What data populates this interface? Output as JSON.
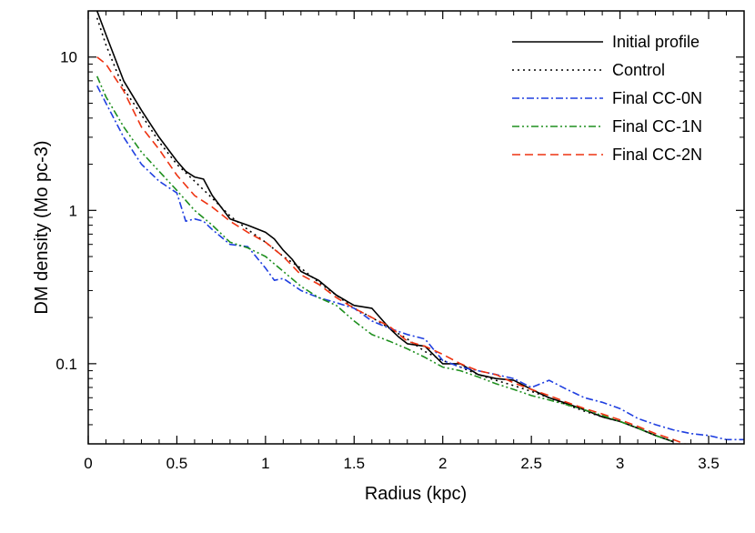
{
  "chart_data": {
    "type": "line",
    "xlabel": "Radius (kpc)",
    "ylabel": "DM density (Mo pc-3)",
    "xscale": "linear",
    "yscale": "log",
    "xlim": [
      0,
      3.7
    ],
    "ylim": [
      0.03,
      20
    ],
    "xticks": [
      0,
      0.5,
      1,
      1.5,
      2,
      2.5,
      3,
      3.5
    ],
    "xtick_labels": [
      "0",
      "0.5",
      "1",
      "1.5",
      "2",
      "2.5",
      "3",
      "3.5"
    ],
    "yticks": [
      0.1,
      1,
      10
    ],
    "ytick_labels": [
      "0.1",
      "1",
      "10"
    ],
    "legend_position": "top-right",
    "series": [
      {
        "name": "Initial profile",
        "color": "#000000",
        "style": "solid",
        "x": [
          0.05,
          0.1,
          0.2,
          0.3,
          0.4,
          0.5,
          0.55,
          0.6,
          0.65,
          0.7,
          0.8,
          0.9,
          1.0,
          1.05,
          1.1,
          1.15,
          1.2,
          1.3,
          1.4,
          1.5,
          1.6,
          1.7,
          1.75,
          1.8,
          1.9,
          2.0,
          2.1,
          2.2,
          2.3,
          2.4,
          2.5,
          2.6,
          2.7,
          2.8,
          2.9,
          3.0,
          3.1,
          3.2,
          3.3
        ],
        "values": [
          20,
          14,
          7.0,
          4.5,
          3.0,
          2.1,
          1.8,
          1.65,
          1.6,
          1.25,
          0.88,
          0.8,
          0.72,
          0.65,
          0.55,
          0.48,
          0.4,
          0.35,
          0.28,
          0.24,
          0.23,
          0.17,
          0.15,
          0.135,
          0.13,
          0.1,
          0.1,
          0.085,
          0.08,
          0.078,
          0.068,
          0.06,
          0.055,
          0.05,
          0.045,
          0.042,
          0.038,
          0.034,
          0.031
        ]
      },
      {
        "name": "Control",
        "color": "#000000",
        "style": "dotted",
        "x": [
          0.05,
          0.1,
          0.2,
          0.3,
          0.4,
          0.5,
          0.6,
          0.7,
          0.8,
          0.9,
          1.0,
          1.1,
          1.2,
          1.3,
          1.4,
          1.5,
          1.6,
          1.7,
          1.8,
          1.9,
          2.0,
          2.1,
          2.2,
          2.3,
          2.4,
          2.5,
          2.6,
          2.7,
          2.8,
          2.9,
          3.0,
          3.1,
          3.2,
          3.3
        ],
        "values": [
          18,
          12,
          6.2,
          4.2,
          2.8,
          2.0,
          1.55,
          1.2,
          0.92,
          0.75,
          0.62,
          0.5,
          0.42,
          0.34,
          0.28,
          0.23,
          0.2,
          0.17,
          0.145,
          0.12,
          0.105,
          0.095,
          0.085,
          0.078,
          0.072,
          0.066,
          0.06,
          0.054,
          0.049,
          0.045,
          0.042,
          0.038,
          0.034,
          0.031
        ]
      },
      {
        "name": "Final CC-0N",
        "color": "#1f3fe0",
        "style": "dashdot",
        "x": [
          0.05,
          0.1,
          0.2,
          0.3,
          0.4,
          0.5,
          0.55,
          0.6,
          0.65,
          0.7,
          0.8,
          0.9,
          1.0,
          1.05,
          1.1,
          1.2,
          1.3,
          1.4,
          1.5,
          1.6,
          1.7,
          1.8,
          1.9,
          2.0,
          2.1,
          2.2,
          2.3,
          2.4,
          2.5,
          2.6,
          2.7,
          2.8,
          2.9,
          3.0,
          3.1,
          3.2,
          3.3,
          3.4,
          3.5,
          3.6,
          3.7
        ],
        "values": [
          6.5,
          5.0,
          3.0,
          2.0,
          1.55,
          1.3,
          0.85,
          0.88,
          0.85,
          0.75,
          0.6,
          0.58,
          0.42,
          0.35,
          0.36,
          0.3,
          0.27,
          0.25,
          0.23,
          0.19,
          0.17,
          0.155,
          0.145,
          0.105,
          0.095,
          0.09,
          0.085,
          0.08,
          0.07,
          0.078,
          0.068,
          0.06,
          0.056,
          0.051,
          0.044,
          0.04,
          0.037,
          0.035,
          0.034,
          0.032,
          0.032
        ]
      },
      {
        "name": "Final CC-1N",
        "color": "#1e8f1e",
        "style": "dashdotdot",
        "x": [
          0.05,
          0.1,
          0.2,
          0.3,
          0.4,
          0.5,
          0.6,
          0.7,
          0.8,
          0.9,
          1.0,
          1.1,
          1.2,
          1.3,
          1.4,
          1.5,
          1.6,
          1.7,
          1.8,
          1.9,
          2.0,
          2.1,
          2.2,
          2.3,
          2.4,
          2.5,
          2.6,
          2.7,
          2.8,
          2.9,
          3.0,
          3.1,
          3.2,
          3.3
        ],
        "values": [
          7.5,
          5.5,
          3.5,
          2.4,
          1.8,
          1.35,
          1.0,
          0.8,
          0.62,
          0.57,
          0.5,
          0.4,
          0.32,
          0.27,
          0.24,
          0.19,
          0.155,
          0.14,
          0.125,
          0.11,
          0.095,
          0.09,
          0.082,
          0.074,
          0.068,
          0.062,
          0.058,
          0.054,
          0.05,
          0.046,
          0.042,
          0.038,
          0.034,
          0.031
        ]
      },
      {
        "name": "Final CC-2N",
        "color": "#ee3311",
        "style": "dashed",
        "x": [
          0.05,
          0.1,
          0.2,
          0.3,
          0.4,
          0.5,
          0.6,
          0.7,
          0.8,
          0.9,
          1.0,
          1.1,
          1.2,
          1.3,
          1.4,
          1.5,
          1.6,
          1.7,
          1.8,
          1.9,
          2.0,
          2.1,
          2.2,
          2.3,
          2.4,
          2.5,
          2.6,
          2.7,
          2.8,
          2.9,
          3.0,
          3.1,
          3.2,
          3.3,
          3.4
        ],
        "values": [
          10,
          9.0,
          6.0,
          3.5,
          2.5,
          1.7,
          1.25,
          1.05,
          0.85,
          0.72,
          0.62,
          0.5,
          0.38,
          0.33,
          0.27,
          0.23,
          0.2,
          0.175,
          0.14,
          0.13,
          0.115,
          0.1,
          0.09,
          0.085,
          0.075,
          0.068,
          0.062,
          0.056,
          0.051,
          0.047,
          0.043,
          0.039,
          0.035,
          0.032,
          0.029
        ]
      }
    ]
  }
}
